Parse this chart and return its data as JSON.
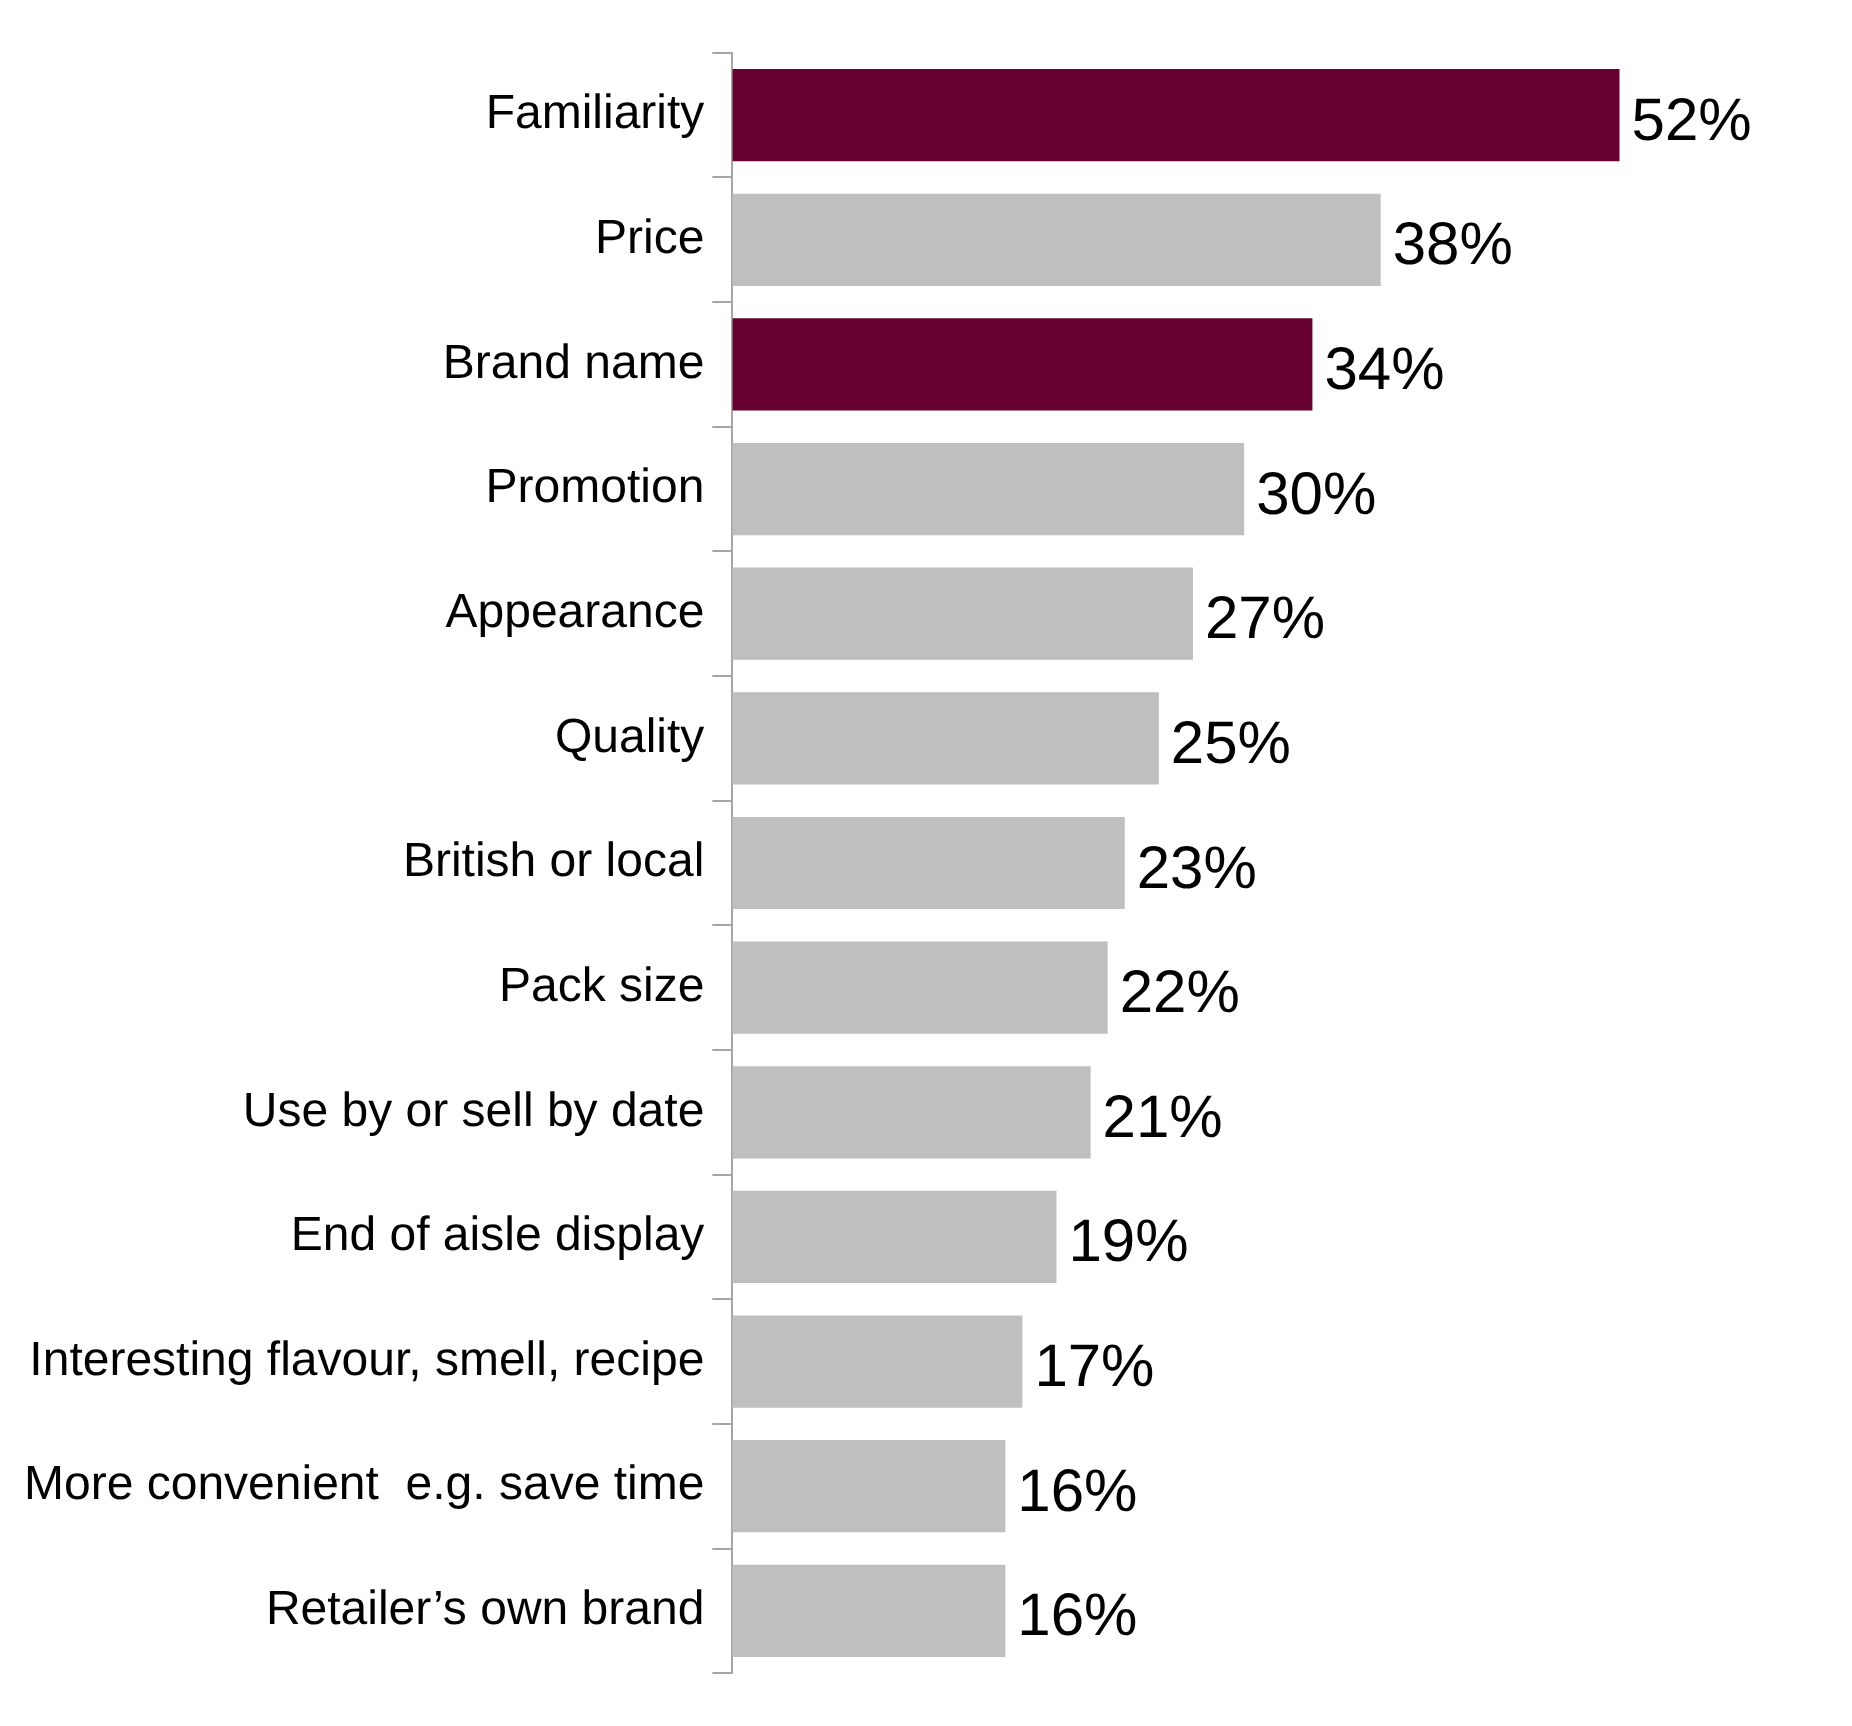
{
  "chart_data": {
    "type": "bar",
    "orientation": "horizontal",
    "categories": [
      "Familiarity",
      "Price",
      "Brand name",
      "Promotion",
      "Appearance",
      "Quality",
      "British or local",
      "Pack size",
      "Use by or sell by date",
      "End of aisle display",
      "Interesting flavour, smell, recipe",
      "More convenient  e.g. save time",
      "Retailer’s own brand"
    ],
    "values": [
      52,
      38,
      34,
      30,
      27,
      25,
      23,
      22,
      21,
      19,
      17,
      16,
      16
    ],
    "colors": [
      "#650030",
      "#bfbfbf",
      "#650030",
      "#bfbfbf",
      "#bfbfbf",
      "#bfbfbf",
      "#bfbfbf",
      "#bfbfbf",
      "#bfbfbf",
      "#bfbfbf",
      "#bfbfbf",
      "#bfbfbf",
      "#bfbfbf"
    ],
    "value_labels": [
      "52%",
      "38%",
      "34%",
      "30%",
      "27%",
      "25%",
      "23%",
      "22%",
      "21%",
      "19%",
      "17%",
      "16%",
      "16%"
    ],
    "legend": false
  }
}
